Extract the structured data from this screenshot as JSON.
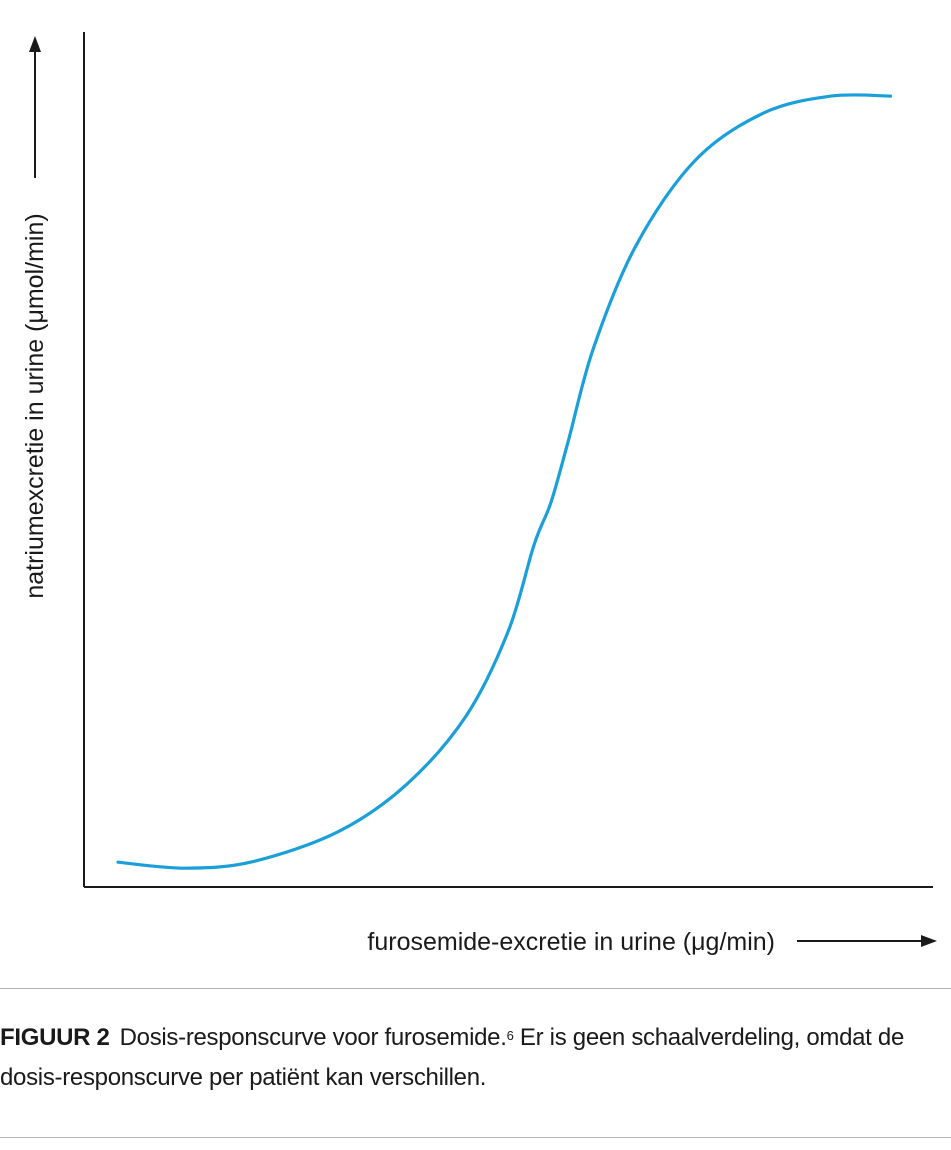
{
  "chart_data": {
    "type": "line",
    "xlabel": "furosemide-excretie in urine (μg/min)",
    "ylabel": "natriumexcretie in urine (μmol/min)",
    "xlim": [
      0,
      1
    ],
    "ylim": [
      0,
      1
    ],
    "grid": false,
    "legend": "none",
    "ticks": "none",
    "series": [
      {
        "color": "#1a9fd9",
        "x": [
          0.04,
          0.12,
          0.2,
          0.3,
          0.38,
          0.45,
          0.5,
          0.53,
          0.55,
          0.57,
          0.6,
          0.65,
          0.72,
          0.8,
          0.88,
          0.95
        ],
        "y": [
          0.029,
          0.022,
          0.03,
          0.065,
          0.12,
          0.2,
          0.3,
          0.4,
          0.45,
          0.52,
          0.63,
          0.75,
          0.85,
          0.905,
          0.925,
          0.925
        ]
      }
    ]
  },
  "caption": {
    "label": "FIGUUR 2",
    "text_before_ref": "Dosis-responscurve voor furosemide.",
    "ref": "6",
    "text_after_ref": " Er is geen schaalverdeling, omdat de dosis-responscurve per patiënt kan verschillen."
  },
  "colors": {
    "curve": "#1a9fd9",
    "axis": "#1a1a1a",
    "divider": "#b5b5b5"
  }
}
